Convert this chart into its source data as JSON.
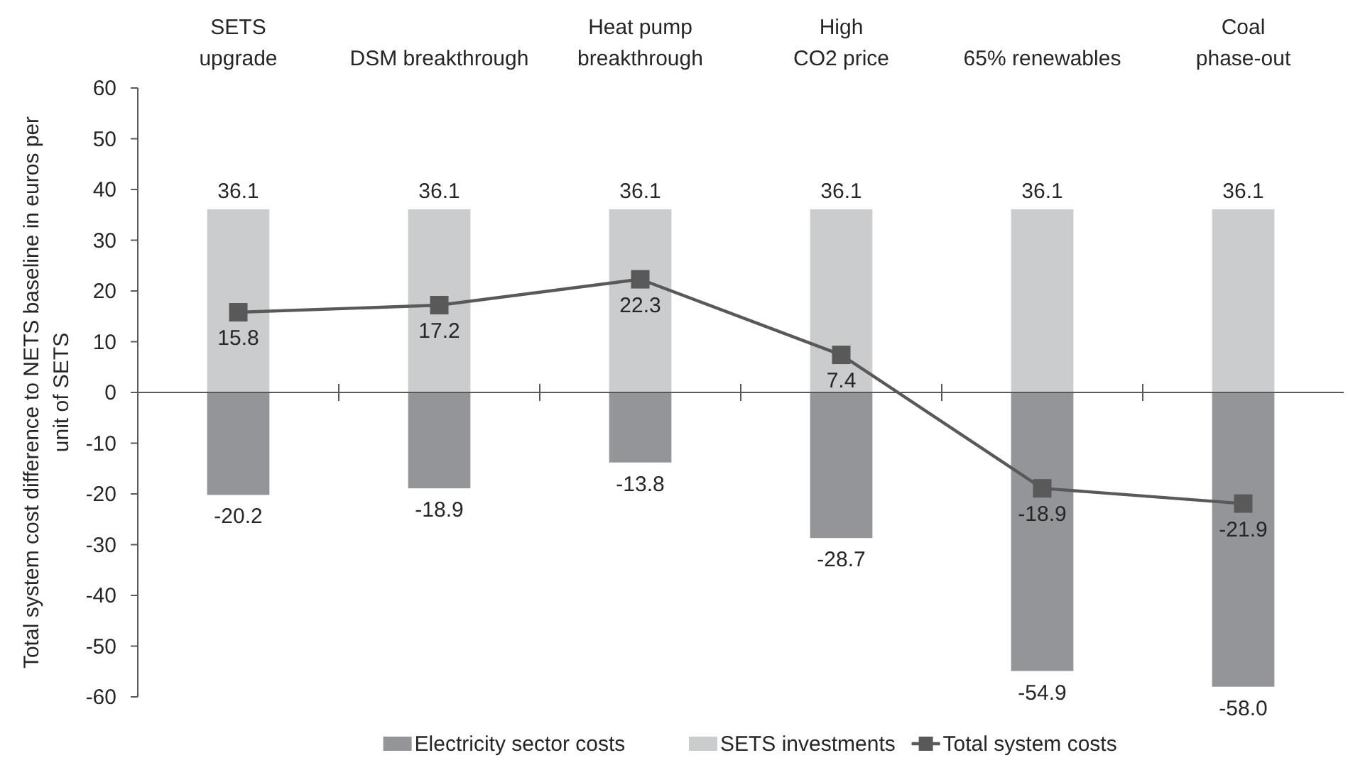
{
  "chart_data": {
    "type": "bar",
    "stacked": true,
    "marker": "square",
    "legend": "bottom",
    "categories": [
      "SETS\nupgrade",
      "DSM breakthrough",
      "Heat pump\nbreakthrough",
      "High\nCO2 price",
      "65% renewables",
      "Coal\nphase-out"
    ],
    "ylabel": "Total system cost difference to NETS baseline in euros per\nunit of SETS",
    "ylim": [
      -60,
      60
    ],
    "yticks": [
      -60,
      -50,
      -40,
      -30,
      -20,
      -10,
      0,
      10,
      20,
      30,
      40,
      50,
      60
    ],
    "series": [
      {
        "name": "Electricity sector costs",
        "type": "bar",
        "color": "#939598",
        "values": [
          -20.2,
          -18.9,
          -13.8,
          -28.7,
          -54.9,
          -58.0
        ],
        "value_labels": [
          "-20.2",
          "-18.9",
          "-13.8",
          "-28.7",
          "-54.9",
          "-58.0"
        ]
      },
      {
        "name": "SETS investments",
        "type": "bar",
        "color": "#cbcccd",
        "values": [
          36.1,
          36.1,
          36.1,
          36.1,
          36.1,
          36.1
        ],
        "value_labels": [
          "36.1",
          "36.1",
          "36.1",
          "36.1",
          "36.1",
          "36.1"
        ]
      },
      {
        "name": "Total system costs",
        "type": "line",
        "color": "#595959",
        "values": [
          15.8,
          17.2,
          22.3,
          7.4,
          -18.9,
          -21.9
        ],
        "value_labels": [
          "15.8",
          "17.2",
          "22.3",
          "7.4",
          "-18.9",
          "-21.9"
        ]
      }
    ]
  }
}
